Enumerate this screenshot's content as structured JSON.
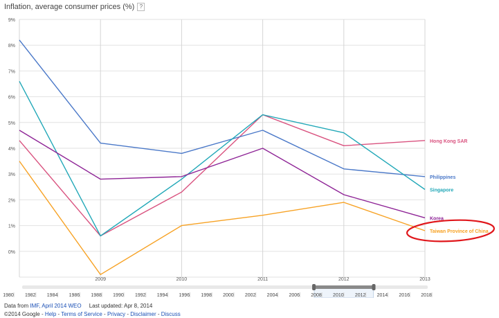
{
  "header": {
    "title": "Inflation, average consumer prices (%)",
    "help_icon": "?"
  },
  "chart_data": {
    "type": "line",
    "title": "Inflation, average consumer prices (%)",
    "x": [
      "2008",
      "2009",
      "2010",
      "2011",
      "2012",
      "2013"
    ],
    "x_tick_labels": [
      "2009",
      "2010",
      "2011",
      "2012",
      "2013"
    ],
    "ylim": [
      -1,
      9
    ],
    "y_ticks": [
      "9%",
      "8%",
      "7%",
      "6%",
      "5%",
      "4%",
      "3%",
      "2%",
      "1%",
      "0%"
    ],
    "grid": true,
    "legend": "right-end labels",
    "series": [
      {
        "name": "Hong Kong SAR",
        "color": "#d9527f",
        "values": [
          4.3,
          0.6,
          2.3,
          5.3,
          4.1,
          4.3
        ]
      },
      {
        "name": "Philippines",
        "color": "#4a78c8",
        "values": [
          8.2,
          4.2,
          3.8,
          4.7,
          3.2,
          2.9
        ]
      },
      {
        "name": "Singapore",
        "color": "#22a8b8",
        "values": [
          6.6,
          0.6,
          2.8,
          5.3,
          4.6,
          2.4
        ]
      },
      {
        "name": "Korea",
        "color": "#8e2496",
        "values": [
          4.7,
          2.8,
          2.9,
          4.0,
          2.2,
          1.3
        ]
      },
      {
        "name": "Taiwan Province of China",
        "color": "#f7a224",
        "values": [
          3.5,
          -0.9,
          1.0,
          1.4,
          1.9,
          0.8
        ]
      }
    ],
    "annotation": {
      "type": "ellipse",
      "color": "#e0161b",
      "target": "Taiwan Province of China"
    },
    "timeline": {
      "labels": [
        "1980",
        "1982",
        "1984",
        "1986",
        "1988",
        "1990",
        "1992",
        "1994",
        "1996",
        "1998",
        "2000",
        "2002",
        "2004",
        "2006",
        "2008",
        "2010",
        "2012",
        "2014",
        "2016",
        "2018"
      ],
      "selection": [
        "2008",
        "2013"
      ]
    }
  },
  "footer": {
    "data_from": "Data from",
    "source_link": "IMF, April 2014 WEO",
    "last_updated": "Last updated: Apr 8, 2014",
    "copyright": "©2014 Google",
    "links": [
      "Help",
      "Terms of Service",
      "Privacy",
      "Disclaimer",
      "Discuss"
    ],
    "separator": " - "
  }
}
